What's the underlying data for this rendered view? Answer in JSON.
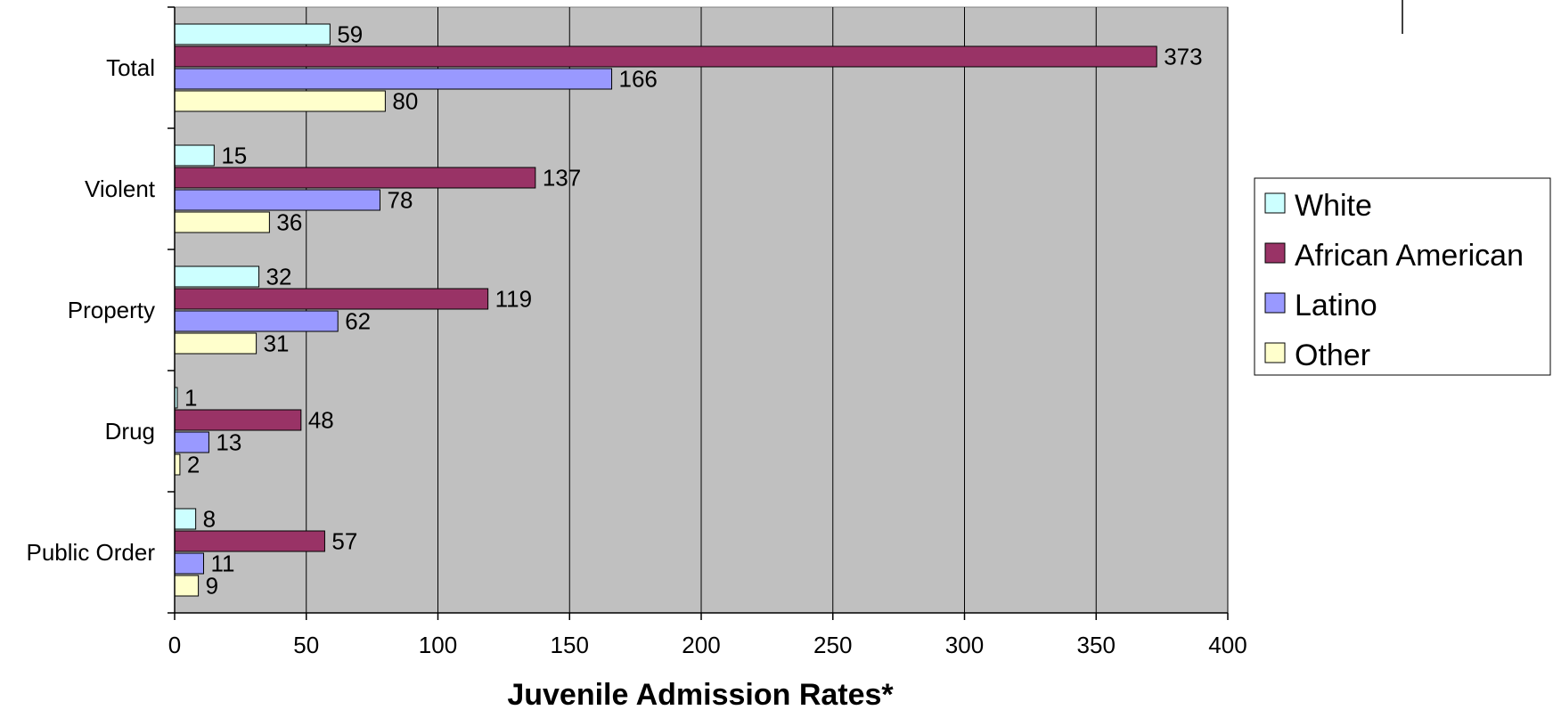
{
  "chart_data": {
    "type": "bar",
    "orientation": "horizontal",
    "categories": [
      "Total",
      "Violent",
      "Property",
      "Drug",
      "Public Order"
    ],
    "series": [
      {
        "name": "White",
        "values": [
          59,
          15,
          32,
          1,
          8
        ],
        "color": "#ccffff"
      },
      {
        "name": "African American",
        "values": [
          373,
          137,
          119,
          48,
          57
        ],
        "color": "#993366"
      },
      {
        "name": "Latino",
        "values": [
          166,
          78,
          62,
          13,
          11
        ],
        "color": "#9999ff"
      },
      {
        "name": "Other",
        "values": [
          80,
          36,
          31,
          2,
          9
        ],
        "color": "#ffffcc"
      }
    ],
    "xlabel": "Juvenile Admission Rates*",
    "ylabel": "",
    "xlim": [
      0,
      400
    ],
    "xticks": [
      0,
      50,
      100,
      150,
      200,
      250,
      300,
      350,
      400
    ],
    "grid": true,
    "legend_position": "right",
    "plot_background": "#c0c0c0"
  }
}
